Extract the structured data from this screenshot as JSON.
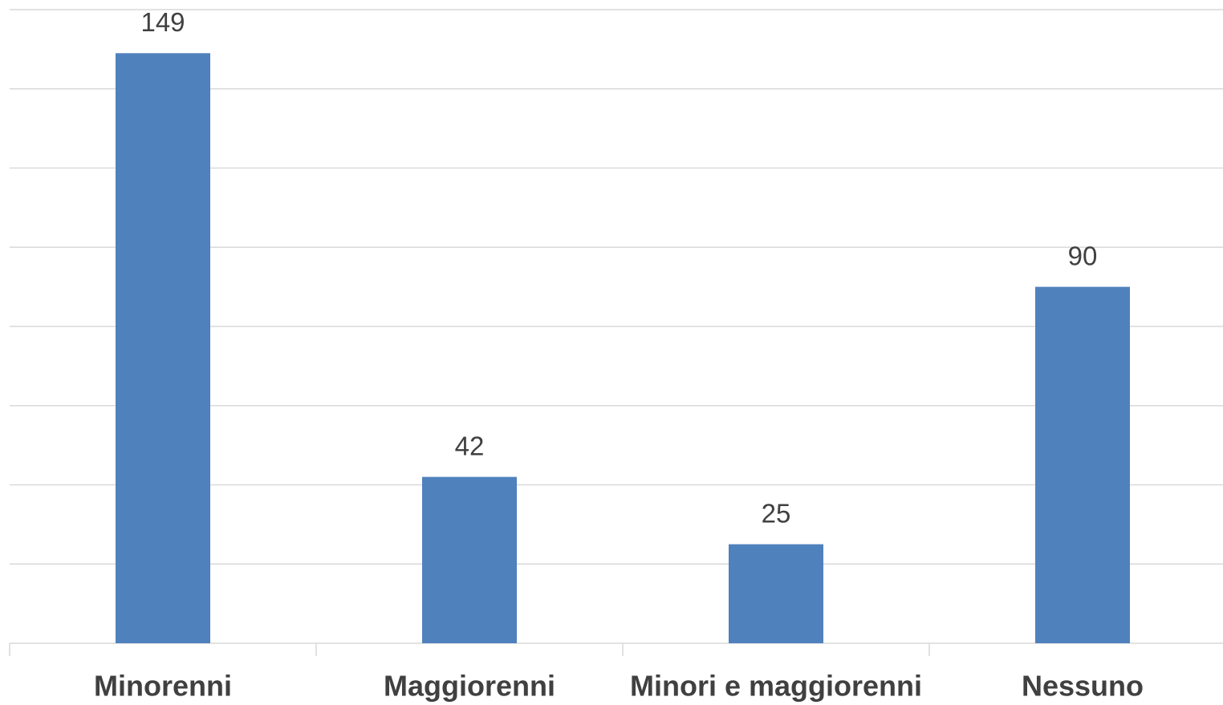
{
  "chart_data": {
    "type": "bar",
    "categories": [
      "Minorenni",
      "Maggiorenni",
      "Minori e maggiorenni",
      "Nessuno"
    ],
    "values": [
      149,
      42,
      25,
      90
    ],
    "color": "#4f81bd",
    "ylim": [
      0,
      160
    ],
    "yticks": [
      0,
      20,
      40,
      60,
      80,
      100,
      120,
      140,
      160
    ],
    "grid": true
  }
}
